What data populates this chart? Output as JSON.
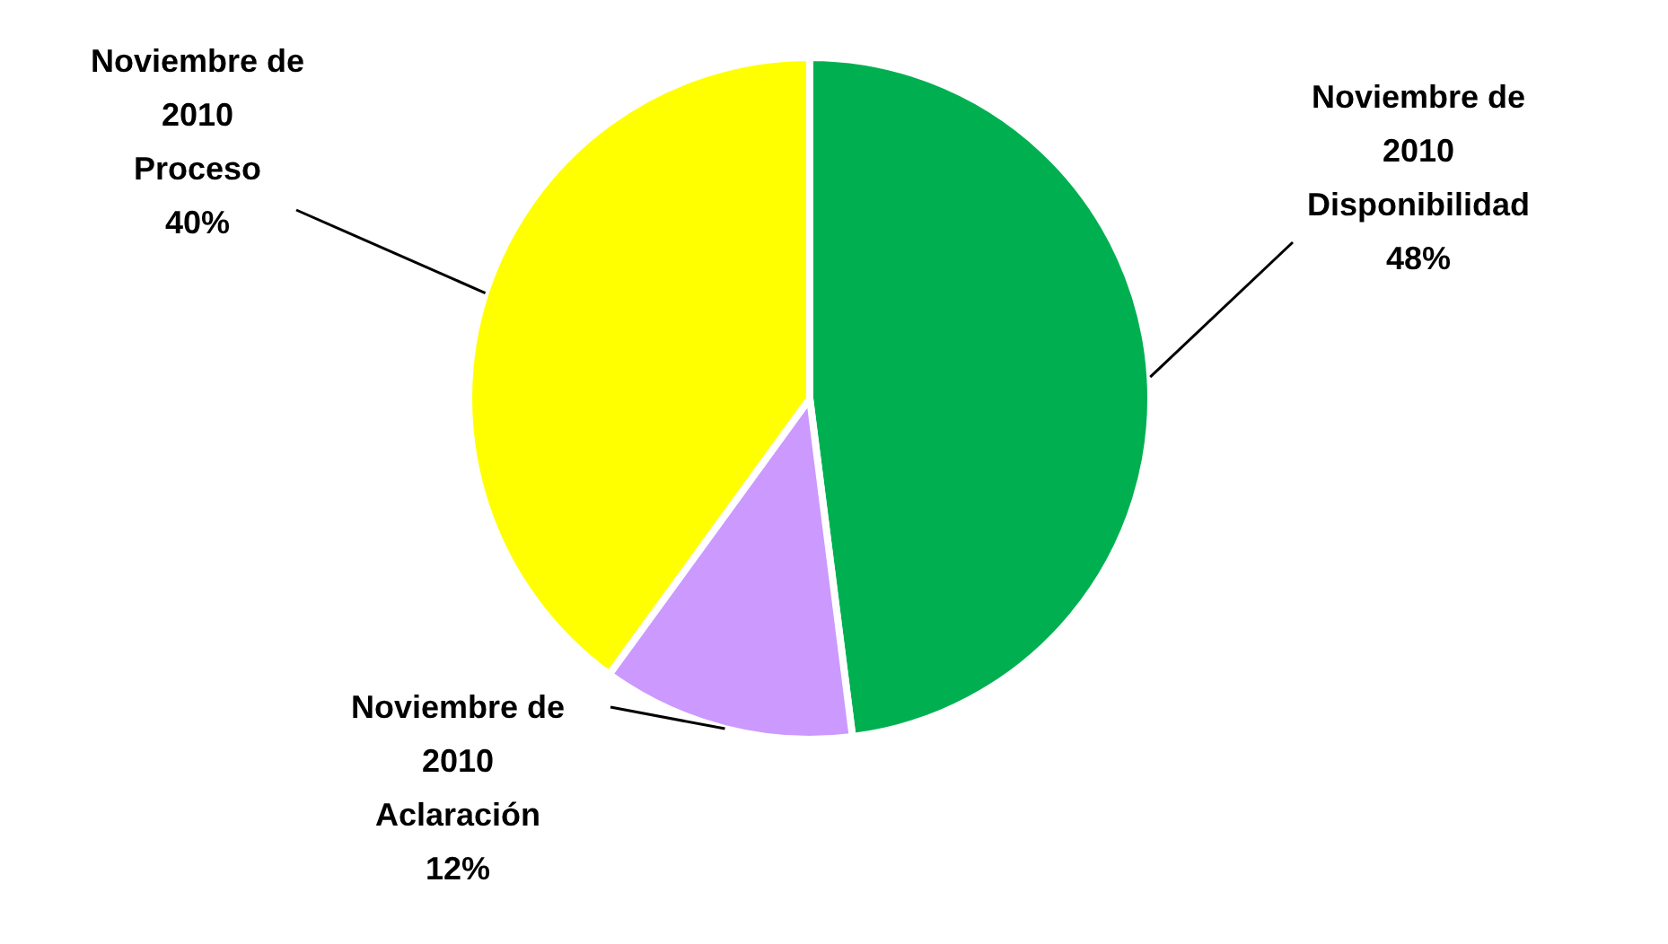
{
  "chart_data": {
    "type": "pie",
    "categories": [
      "Noviembre de 2010 Disponibilidad",
      "Noviembre de 2010 Aclaración",
      "Noviembre de 2010 Proceso"
    ],
    "values": [
      48,
      12,
      40
    ],
    "value_labels": [
      "48%",
      "12%",
      "40%"
    ],
    "colors": [
      "#00b050",
      "#cc99ff",
      "#ffff00"
    ]
  }
}
